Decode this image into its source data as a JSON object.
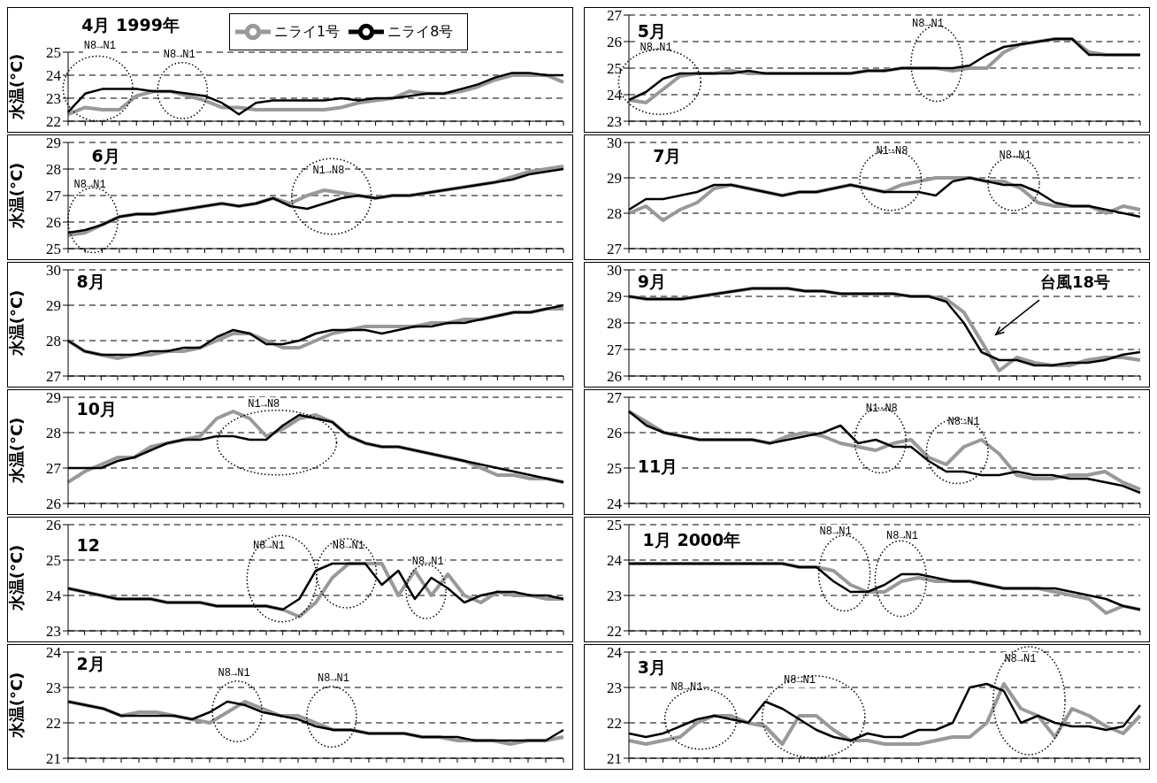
{
  "chart_data": [
    {
      "type": "line",
      "title": "4月 1999年",
      "ylabel": "水温(°C)",
      "ylim": [
        22,
        25
      ],
      "yticks": [
        22,
        23,
        24,
        25
      ],
      "grid": "y",
      "legend": "top",
      "annotations": [
        "N8→N1",
        "N8→N1"
      ],
      "categories": [
        null,
        null,
        null,
        null,
        null,
        null,
        null,
        null,
        null,
        null,
        null,
        null,
        null,
        null,
        null,
        null,
        null,
        null,
        null,
        null,
        null,
        null,
        null,
        null,
        null,
        null,
        null,
        null,
        null,
        null
      ],
      "series": [
        {
          "name": "ニライ1号",
          "color": "#999999",
          "values": [
            22.3,
            22.6,
            22.5,
            22.5,
            23.1,
            23.3,
            23.3,
            23.1,
            22.9,
            22.6,
            22.6,
            22.5,
            22.5,
            22.5,
            22.5,
            22.5,
            22.6,
            22.8,
            22.9,
            23.0,
            23.3,
            23.2,
            23.2,
            23.3,
            23.5,
            23.8,
            24.0,
            24.0,
            24.0,
            23.7
          ]
        },
        {
          "name": "ニライ8号",
          "color": "#000000",
          "values": [
            22.4,
            23.2,
            23.4,
            23.4,
            23.4,
            23.3,
            23.3,
            23.2,
            23.1,
            22.8,
            22.3,
            22.8,
            22.9,
            22.9,
            22.9,
            22.9,
            23.0,
            22.9,
            23.0,
            23.0,
            23.1,
            23.2,
            23.2,
            23.4,
            23.6,
            23.9,
            24.1,
            24.1,
            24.0,
            24.0
          ]
        }
      ]
    },
    {
      "type": "line",
      "title": "5月",
      "ylim": [
        23,
        27
      ],
      "yticks": [
        23,
        24,
        25,
        26,
        27
      ],
      "grid": "y",
      "annotations": [
        "N8→N1",
        "N8→N1"
      ],
      "categories": [
        null,
        null,
        null,
        null,
        null,
        null,
        null,
        null,
        null,
        null,
        null,
        null,
        null,
        null,
        null,
        null,
        null,
        null,
        null,
        null,
        null,
        null,
        null,
        null,
        null,
        null,
        null,
        null,
        null,
        null,
        null
      ],
      "series": [
        {
          "color": "#999999",
          "values": [
            23.8,
            23.7,
            24.2,
            24.7,
            24.8,
            24.8,
            24.9,
            24.8,
            24.8,
            24.8,
            24.8,
            24.8,
            24.8,
            24.8,
            24.9,
            24.9,
            25.0,
            25.0,
            25.0,
            24.9,
            25.0,
            25.0,
            25.6,
            25.9,
            26.0,
            26.1,
            26.1,
            25.6,
            25.5,
            25.5,
            25.5
          ]
        },
        {
          "color": "#000000",
          "values": [
            23.8,
            24.1,
            24.6,
            24.8,
            24.8,
            24.8,
            24.8,
            24.9,
            24.8,
            24.8,
            24.8,
            24.8,
            24.8,
            24.8,
            24.9,
            24.9,
            25.0,
            25.0,
            25.0,
            25.0,
            25.1,
            25.5,
            25.8,
            25.9,
            26.0,
            26.1,
            26.1,
            25.5,
            25.5,
            25.5,
            25.5
          ]
        }
      ]
    },
    {
      "type": "line",
      "title": "6月",
      "ylabel": "水温(°C)",
      "ylim": [
        25,
        29
      ],
      "yticks": [
        25,
        26,
        27,
        28,
        29
      ],
      "grid": "y",
      "annotations": [
        "N8→N1",
        "N1→N8"
      ],
      "categories": [
        null,
        null,
        null,
        null,
        null,
        null,
        null,
        null,
        null,
        null,
        null,
        null,
        null,
        null,
        null,
        null,
        null,
        null,
        null,
        null,
        null,
        null,
        null,
        null,
        null,
        null,
        null,
        null,
        null,
        null
      ],
      "series": [
        {
          "color": "#999999",
          "values": [
            25.5,
            25.6,
            25.9,
            26.2,
            26.3,
            26.3,
            26.4,
            26.5,
            26.6,
            26.7,
            26.6,
            26.7,
            26.9,
            26.7,
            27.0,
            27.2,
            27.1,
            27.0,
            26.9,
            27.0,
            27.0,
            27.1,
            27.2,
            27.3,
            27.4,
            27.5,
            27.7,
            27.9,
            28.0,
            28.1
          ]
        },
        {
          "color": "#000000",
          "values": [
            25.6,
            25.7,
            25.9,
            26.2,
            26.3,
            26.3,
            26.4,
            26.5,
            26.6,
            26.7,
            26.6,
            26.7,
            26.9,
            26.6,
            26.5,
            26.7,
            26.9,
            27.0,
            26.9,
            27.0,
            27.0,
            27.1,
            27.2,
            27.3,
            27.4,
            27.5,
            27.6,
            27.8,
            27.9,
            28.0
          ]
        }
      ]
    },
    {
      "type": "line",
      "title": "7月",
      "ylim": [
        27,
        30
      ],
      "yticks": [
        27,
        28,
        29,
        30
      ],
      "grid": "y",
      "annotations": [
        "N1→N8",
        "N8→N1"
      ],
      "categories": [
        null,
        null,
        null,
        null,
        null,
        null,
        null,
        null,
        null,
        null,
        null,
        null,
        null,
        null,
        null,
        null,
        null,
        null,
        null,
        null,
        null,
        null,
        null,
        null,
        null,
        null,
        null,
        null,
        null,
        null,
        null
      ],
      "series": [
        {
          "color": "#999999",
          "values": [
            28.0,
            28.2,
            27.8,
            28.1,
            28.3,
            28.7,
            28.8,
            28.7,
            28.6,
            28.5,
            28.6,
            28.6,
            28.7,
            28.8,
            28.7,
            28.6,
            28.8,
            28.9,
            29.0,
            29.0,
            29.0,
            28.9,
            28.9,
            28.7,
            28.3,
            28.2,
            28.2,
            28.2,
            28.0,
            28.2,
            28.1
          ]
        },
        {
          "color": "#000000",
          "values": [
            28.1,
            28.4,
            28.4,
            28.5,
            28.6,
            28.8,
            28.8,
            28.7,
            28.6,
            28.5,
            28.6,
            28.6,
            28.7,
            28.8,
            28.7,
            28.6,
            28.6,
            28.6,
            28.5,
            28.9,
            29.0,
            28.9,
            28.8,
            28.8,
            28.6,
            28.3,
            28.2,
            28.2,
            28.1,
            28.0,
            27.9
          ]
        }
      ]
    },
    {
      "type": "line",
      "title": "8月",
      "ylabel": "水温(°C)",
      "ylim": [
        27,
        30
      ],
      "yticks": [
        27,
        28,
        29,
        30
      ],
      "grid": "y",
      "categories": [
        null,
        null,
        null,
        null,
        null,
        null,
        null,
        null,
        null,
        null,
        null,
        null,
        null,
        null,
        null,
        null,
        null,
        null,
        null,
        null,
        null,
        null,
        null,
        null,
        null,
        null,
        null,
        null,
        null,
        null,
        null
      ],
      "series": [
        {
          "color": "#999999",
          "values": [
            28.0,
            27.7,
            27.6,
            27.5,
            27.6,
            27.6,
            27.7,
            27.7,
            27.8,
            28.0,
            28.2,
            28.2,
            28.0,
            27.8,
            27.8,
            28.0,
            28.2,
            28.3,
            28.4,
            28.4,
            28.4,
            28.4,
            28.5,
            28.5,
            28.6,
            28.6,
            28.7,
            28.8,
            28.8,
            28.9,
            28.9
          ]
        },
        {
          "color": "#000000",
          "values": [
            28.0,
            27.7,
            27.6,
            27.6,
            27.6,
            27.7,
            27.7,
            27.8,
            27.8,
            28.1,
            28.3,
            28.2,
            27.9,
            27.9,
            28.0,
            28.2,
            28.3,
            28.3,
            28.3,
            28.2,
            28.3,
            28.4,
            28.4,
            28.5,
            28.5,
            28.6,
            28.7,
            28.8,
            28.8,
            28.9,
            29.0
          ]
        }
      ]
    },
    {
      "type": "line",
      "title": "9月",
      "ylim": [
        26,
        30
      ],
      "yticks": [
        26,
        27,
        28,
        29,
        30
      ],
      "grid": "y",
      "annotations": [
        "台風18号"
      ],
      "categories": [
        null,
        null,
        null,
        null,
        null,
        null,
        null,
        null,
        null,
        null,
        null,
        null,
        null,
        null,
        null,
        null,
        null,
        null,
        null,
        null,
        null,
        null,
        null,
        null,
        null,
        null,
        null,
        null,
        null,
        null
      ],
      "series": [
        {
          "color": "#999999",
          "values": [
            29.0,
            28.9,
            28.9,
            28.9,
            29.0,
            29.1,
            29.2,
            29.3,
            29.3,
            29.3,
            29.2,
            29.2,
            29.1,
            29.1,
            29.1,
            29.1,
            29.0,
            29.0,
            28.9,
            28.4,
            27.3,
            26.2,
            26.7,
            26.5,
            26.4,
            26.4,
            26.6,
            26.7,
            26.7,
            26.6
          ]
        },
        {
          "color": "#000000",
          "values": [
            29.0,
            28.9,
            28.9,
            28.9,
            29.0,
            29.1,
            29.2,
            29.3,
            29.3,
            29.3,
            29.2,
            29.2,
            29.1,
            29.1,
            29.1,
            29.1,
            29.0,
            29.0,
            28.8,
            28.0,
            26.9,
            26.6,
            26.6,
            26.4,
            26.4,
            26.5,
            26.5,
            26.6,
            26.8,
            26.9
          ]
        }
      ]
    },
    {
      "type": "line",
      "title": "10月",
      "ylabel": "水温(°C)",
      "ylim": [
        26,
        29
      ],
      "yticks": [
        26,
        27,
        28,
        29
      ],
      "grid": "y",
      "annotations": [
        "N1→N8"
      ],
      "categories": [
        null,
        null,
        null,
        null,
        null,
        null,
        null,
        null,
        null,
        null,
        null,
        null,
        null,
        null,
        null,
        null,
        null,
        null,
        null,
        null,
        null,
        null,
        null,
        null,
        null,
        null,
        null,
        null,
        null,
        null,
        null
      ],
      "series": [
        {
          "color": "#999999",
          "values": [
            26.6,
            26.9,
            27.1,
            27.3,
            27.3,
            27.6,
            27.7,
            27.8,
            27.9,
            28.4,
            28.6,
            28.4,
            27.9,
            28.1,
            28.4,
            28.5,
            28.3,
            27.9,
            27.7,
            27.6,
            27.6,
            27.5,
            27.4,
            27.3,
            27.2,
            27.0,
            26.8,
            26.8,
            26.7,
            26.7,
            26.6
          ]
        },
        {
          "color": "#000000",
          "values": [
            27.0,
            27.0,
            27.0,
            27.2,
            27.3,
            27.5,
            27.7,
            27.8,
            27.8,
            27.9,
            27.9,
            27.8,
            27.8,
            28.2,
            28.5,
            28.4,
            28.3,
            27.9,
            27.7,
            27.6,
            27.6,
            27.5,
            27.4,
            27.3,
            27.2,
            27.1,
            27.0,
            26.9,
            26.8,
            26.7,
            26.6
          ]
        }
      ]
    },
    {
      "type": "line",
      "title": "11月",
      "ylim": [
        24,
        27
      ],
      "yticks": [
        24,
        25,
        26,
        27
      ],
      "grid": "y",
      "annotations": [
        "N1→N8",
        "N8→N1"
      ],
      "categories": [
        null,
        null,
        null,
        null,
        null,
        null,
        null,
        null,
        null,
        null,
        null,
        null,
        null,
        null,
        null,
        null,
        null,
        null,
        null,
        null,
        null,
        null,
        null,
        null,
        null,
        null,
        null,
        null,
        null,
        null
      ],
      "series": [
        {
          "color": "#999999",
          "values": [
            26.6,
            26.3,
            26.0,
            25.9,
            25.8,
            25.8,
            25.8,
            25.8,
            25.7,
            25.9,
            26.0,
            25.9,
            25.7,
            25.6,
            25.5,
            25.7,
            25.8,
            25.3,
            25.1,
            25.6,
            25.8,
            25.4,
            24.8,
            24.7,
            24.7,
            24.8,
            24.8,
            24.9,
            24.6,
            24.4
          ]
        },
        {
          "color": "#000000",
          "values": [
            26.6,
            26.2,
            26.0,
            25.9,
            25.8,
            25.8,
            25.8,
            25.8,
            25.7,
            25.8,
            25.9,
            26.0,
            26.2,
            25.7,
            25.8,
            25.6,
            25.6,
            25.2,
            24.9,
            24.9,
            24.8,
            24.8,
            24.9,
            24.8,
            24.8,
            24.7,
            24.7,
            24.6,
            24.5,
            24.3
          ]
        }
      ]
    },
    {
      "type": "line",
      "title": "12",
      "ylabel": "水温(°C)",
      "ylim": [
        23,
        26
      ],
      "yticks": [
        23,
        24,
        25,
        26
      ],
      "grid": "y",
      "annotations": [
        "N8→N1",
        "N8→N1",
        "N8→N1"
      ],
      "categories": [
        null,
        null,
        null,
        null,
        null,
        null,
        null,
        null,
        null,
        null,
        null,
        null,
        null,
        null,
        null,
        null,
        null,
        null,
        null,
        null,
        null,
        null,
        null,
        null,
        null,
        null,
        null,
        null,
        null,
        null,
        null
      ],
      "series": [
        {
          "color": "#999999",
          "values": [
            24.2,
            24.1,
            24.0,
            23.9,
            23.9,
            23.9,
            23.8,
            23.8,
            23.8,
            23.7,
            23.7,
            23.7,
            23.7,
            23.6,
            23.4,
            23.8,
            24.5,
            24.9,
            24.9,
            24.9,
            24.0,
            24.7,
            24.0,
            24.6,
            24.0,
            23.8,
            24.1,
            24.0,
            24.0,
            23.9,
            23.9
          ]
        },
        {
          "color": "#000000",
          "values": [
            24.2,
            24.1,
            24.0,
            23.9,
            23.9,
            23.9,
            23.8,
            23.8,
            23.8,
            23.7,
            23.7,
            23.7,
            23.7,
            23.6,
            23.9,
            24.7,
            24.9,
            24.9,
            24.9,
            24.3,
            24.7,
            23.9,
            24.5,
            24.2,
            23.8,
            24.0,
            24.1,
            24.1,
            24.0,
            24.0,
            23.9
          ]
        }
      ]
    },
    {
      "type": "line",
      "title": "1月 2000年",
      "ylim": [
        22,
        25
      ],
      "yticks": [
        22,
        23,
        24,
        25
      ],
      "grid": "y",
      "annotations": [
        "N8→N1",
        "N8→N1"
      ],
      "categories": [
        null,
        null,
        null,
        null,
        null,
        null,
        null,
        null,
        null,
        null,
        null,
        null,
        null,
        null,
        null,
        null,
        null,
        null,
        null,
        null,
        null,
        null,
        null,
        null,
        null,
        null,
        null,
        null,
        null,
        null,
        null
      ],
      "series": [
        {
          "color": "#999999",
          "values": [
            23.9,
            23.9,
            23.9,
            23.9,
            23.9,
            23.9,
            23.9,
            23.9,
            23.9,
            23.9,
            23.8,
            23.8,
            23.7,
            23.3,
            23.1,
            23.1,
            23.4,
            23.5,
            23.4,
            23.4,
            23.4,
            23.3,
            23.2,
            23.2,
            23.2,
            23.1,
            23.0,
            22.9,
            22.5,
            22.7,
            22.6
          ]
        },
        {
          "color": "#000000",
          "values": [
            23.9,
            23.9,
            23.9,
            23.9,
            23.9,
            23.9,
            23.9,
            23.9,
            23.9,
            23.9,
            23.8,
            23.8,
            23.4,
            23.1,
            23.1,
            23.3,
            23.6,
            23.6,
            23.5,
            23.4,
            23.4,
            23.3,
            23.2,
            23.2,
            23.2,
            23.2,
            23.1,
            23.0,
            22.9,
            22.7,
            22.6
          ]
        }
      ]
    },
    {
      "type": "line",
      "title": "2月",
      "ylabel": "水温(°C)",
      "ylim": [
        21,
        24
      ],
      "yticks": [
        21,
        22,
        23,
        24
      ],
      "grid": "y",
      "annotations": [
        "N8→N1",
        "N8→N1"
      ],
      "categories": [
        null,
        null,
        null,
        null,
        null,
        null,
        null,
        null,
        null,
        null,
        null,
        null,
        null,
        null,
        null,
        null,
        null,
        null,
        null,
        null,
        null,
        null,
        null,
        null,
        null,
        null,
        null,
        null,
        null
      ],
      "series": [
        {
          "color": "#999999",
          "values": [
            22.6,
            22.5,
            22.4,
            22.2,
            22.3,
            22.3,
            22.2,
            22.1,
            22.0,
            22.3,
            22.6,
            22.4,
            22.2,
            22.2,
            22.0,
            21.8,
            21.8,
            21.7,
            21.7,
            21.7,
            21.6,
            21.6,
            21.5,
            21.5,
            21.5,
            21.4,
            21.5,
            21.5,
            21.6
          ]
        },
        {
          "color": "#000000",
          "values": [
            22.6,
            22.5,
            22.4,
            22.2,
            22.2,
            22.2,
            22.2,
            22.1,
            22.3,
            22.6,
            22.5,
            22.3,
            22.2,
            22.1,
            21.9,
            21.8,
            21.8,
            21.7,
            21.7,
            21.7,
            21.6,
            21.6,
            21.6,
            21.5,
            21.5,
            21.5,
            21.5,
            21.5,
            21.8
          ]
        }
      ]
    },
    {
      "type": "line",
      "title": "3月",
      "ylim": [
        21,
        24
      ],
      "yticks": [
        21,
        22,
        23,
        24
      ],
      "grid": "y",
      "annotations": [
        "N8→N1",
        "N8→N1",
        "N8→N1"
      ],
      "categories": [
        null,
        null,
        null,
        null,
        null,
        null,
        null,
        null,
        null,
        null,
        null,
        null,
        null,
        null,
        null,
        null,
        null,
        null,
        null,
        null,
        null,
        null,
        null,
        null,
        null,
        null,
        null,
        null,
        null,
        null,
        null
      ],
      "series": [
        {
          "color": "#999999",
          "values": [
            21.5,
            21.4,
            21.5,
            21.6,
            22.0,
            22.2,
            22.2,
            22.0,
            21.9,
            21.4,
            22.2,
            22.2,
            21.8,
            21.5,
            21.5,
            21.4,
            21.4,
            21.4,
            21.5,
            21.6,
            21.6,
            22.0,
            23.1,
            22.4,
            22.2,
            21.6,
            22.4,
            22.2,
            21.9,
            21.7,
            22.2
          ]
        },
        {
          "color": "#000000",
          "values": [
            21.7,
            21.6,
            21.7,
            21.9,
            22.1,
            22.2,
            22.1,
            22.0,
            22.6,
            22.4,
            22.1,
            21.8,
            21.6,
            21.5,
            21.7,
            21.6,
            21.6,
            21.8,
            21.8,
            22.0,
            23.0,
            23.1,
            22.9,
            22.0,
            22.2,
            22.0,
            21.9,
            21.9,
            21.8,
            21.9,
            22.5
          ]
        }
      ]
    }
  ]
}
